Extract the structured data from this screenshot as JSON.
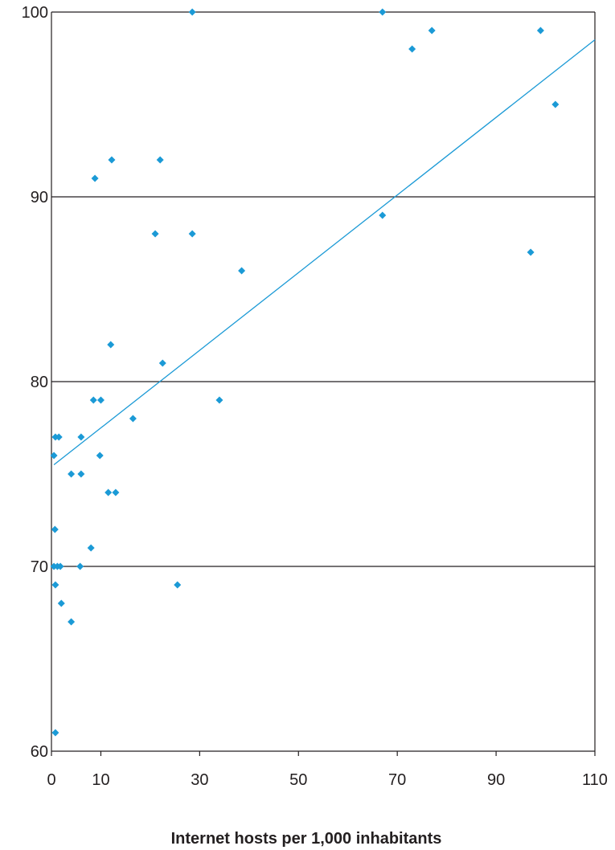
{
  "chart_data": {
    "type": "scatter",
    "title": "",
    "xlabel": "Internet hosts per 1,000 inhabitants",
    "ylabel": "",
    "xlim": [
      0,
      110
    ],
    "ylim": [
      60,
      100
    ],
    "x_ticks": [
      0,
      10,
      30,
      50,
      70,
      90,
      110
    ],
    "y_ticks": [
      60,
      70,
      80,
      90,
      100
    ],
    "grid": "horizontal",
    "colors": {
      "points": "#1b9ad6",
      "trend": "#1b9ad6",
      "axis": "#231f20"
    },
    "series": [
      {
        "points": [
          [
            0.5,
            76
          ],
          [
            0.8,
            77
          ],
          [
            1.5,
            77
          ],
          [
            0.7,
            72
          ],
          [
            0.5,
            70
          ],
          [
            1.2,
            70
          ],
          [
            1.8,
            70
          ],
          [
            0.8,
            69
          ],
          [
            2.0,
            68
          ],
          [
            0.8,
            61
          ],
          [
            4.0,
            75
          ],
          [
            6.0,
            75
          ],
          [
            6.0,
            77
          ],
          [
            4.0,
            67
          ],
          [
            5.8,
            70
          ],
          [
            8.0,
            71
          ],
          [
            8.5,
            79
          ],
          [
            10.0,
            79
          ],
          [
            9.8,
            76
          ],
          [
            8.8,
            91
          ],
          [
            12.2,
            92
          ],
          [
            12.0,
            82
          ],
          [
            11.5,
            74
          ],
          [
            13.0,
            74
          ],
          [
            16.5,
            78
          ],
          [
            21.0,
            88
          ],
          [
            22.0,
            92
          ],
          [
            22.5,
            81
          ],
          [
            25.5,
            69
          ],
          [
            28.5,
            100
          ],
          [
            28.5,
            88
          ],
          [
            34.0,
            79
          ],
          [
            38.5,
            86
          ],
          [
            67.0,
            100
          ],
          [
            67.0,
            89
          ],
          [
            73.0,
            98
          ],
          [
            77.0,
            99
          ],
          [
            97.0,
            87
          ],
          [
            99.0,
            99
          ],
          [
            102.0,
            95
          ]
        ]
      }
    ],
    "trendline": {
      "x": [
        0.5,
        110
      ],
      "y": [
        75.5,
        98.5
      ]
    }
  }
}
